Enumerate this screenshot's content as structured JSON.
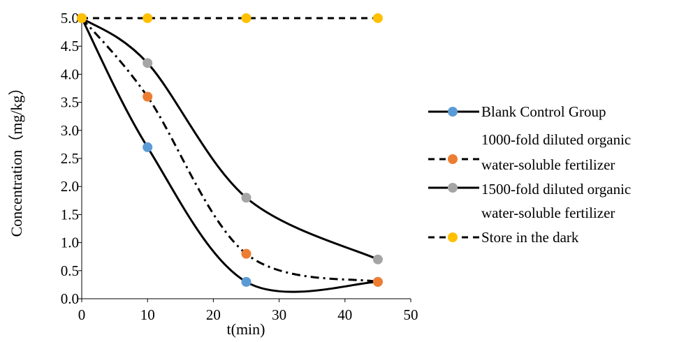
{
  "chart_data": {
    "type": "line",
    "title": "",
    "xlabel": "t(min)",
    "ylabel": "Concentration（mg/kg）",
    "xlim": [
      0,
      50
    ],
    "ylim": [
      0,
      5
    ],
    "xticks": [
      "0",
      "10",
      "20",
      "30",
      "40",
      "50"
    ],
    "yticks": [
      "0.0",
      "0.5",
      "1.0",
      "1.5",
      "2.0",
      "2.5",
      "3.0",
      "3.5",
      "4.0",
      "4.5",
      "5.0"
    ],
    "grid": false,
    "legend_position": "right",
    "series": [
      {
        "name": "Blank Control Group",
        "color": "#5b9bd5",
        "line_color": "#000000",
        "line_style": "solid",
        "x": [
          0,
          10,
          25,
          45
        ],
        "values": [
          5.0,
          2.7,
          0.3,
          0.3
        ]
      },
      {
        "name": "1000-fold diluted organic water-soluble fertilizer",
        "color": "#ed7d31",
        "line_color": "#000000",
        "line_style": "dashdot",
        "legend_line_style": "dashed",
        "x": [
          0,
          10,
          25,
          45
        ],
        "values": [
          5.0,
          3.6,
          0.8,
          0.3
        ]
      },
      {
        "name": "1500-fold diluted organic water-soluble fertilizer",
        "color": "#a5a5a5",
        "line_color": "#000000",
        "line_style": "solid",
        "x": [
          0,
          10,
          25,
          45
        ],
        "values": [
          5.0,
          4.2,
          1.8,
          0.7
        ]
      },
      {
        "name": "Store in the dark",
        "color": "#ffc000",
        "line_color": "#000000",
        "line_style": "dashed",
        "x": [
          0,
          10,
          25,
          45
        ],
        "values": [
          5.0,
          5.0,
          5.0,
          5.0
        ]
      }
    ],
    "legend_text_lines": [
      [
        "Blank Control Group"
      ],
      [
        "1000-fold diluted organic",
        "water-soluble fertilizer"
      ],
      [
        "1500-fold diluted organic",
        "water-soluble fertilizer"
      ],
      [
        "Store in the dark"
      ]
    ]
  }
}
